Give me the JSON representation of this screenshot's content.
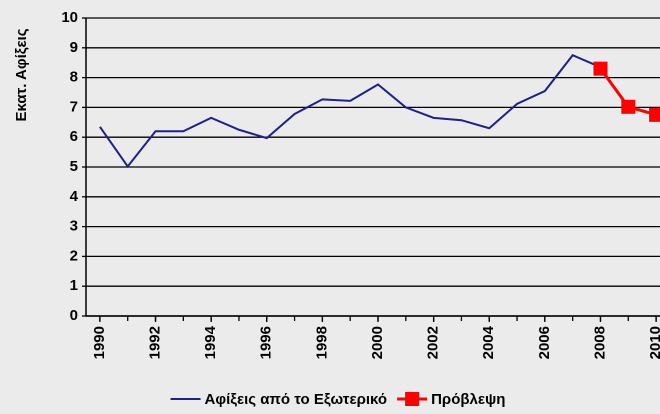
{
  "chart_data": {
    "type": "line",
    "y_label": "Εκατ. Αφίξεις",
    "x": [
      1990,
      1991,
      1992,
      1993,
      1994,
      1995,
      1996,
      1997,
      1998,
      1999,
      2000,
      2001,
      2002,
      2003,
      2004,
      2005,
      2006,
      2007,
      2008,
      2009,
      2010
    ],
    "series": [
      {
        "name": "Αφίξεις από το Εξωτερικό",
        "color": "#1f1f8f",
        "values": [
          6.35,
          5.02,
          6.2,
          6.2,
          6.65,
          6.25,
          5.97,
          6.78,
          7.27,
          7.22,
          7.77,
          7.0,
          6.65,
          6.57,
          6.3,
          7.12,
          7.55,
          8.75,
          8.35,
          null,
          null
        ]
      },
      {
        "name": "Πρόβλεψη",
        "color": "#ff0000",
        "marker": "square",
        "values": [
          null,
          null,
          null,
          null,
          null,
          null,
          null,
          null,
          null,
          null,
          null,
          null,
          null,
          null,
          null,
          null,
          null,
          null,
          8.3,
          7.02,
          6.75
        ]
      }
    ],
    "xlim": [
      1989.5,
      2010.5
    ],
    "xticks": [
      1990,
      1992,
      1994,
      1996,
      1998,
      2000,
      2002,
      2004,
      2006,
      2008,
      2010
    ],
    "ylim": [
      0,
      10
    ],
    "yticks": [
      0,
      1,
      2,
      3,
      4,
      5,
      6,
      7,
      8,
      9,
      10
    ],
    "grid": true,
    "legend": "bottom"
  }
}
